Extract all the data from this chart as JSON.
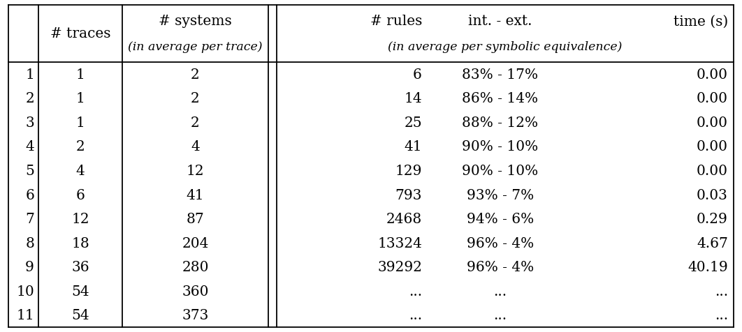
{
  "rows": [
    [
      "1",
      "1",
      "2",
      "6",
      "83% - 17%",
      "0.00"
    ],
    [
      "2",
      "1",
      "2",
      "14",
      "86% - 14%",
      "0.00"
    ],
    [
      "3",
      "1",
      "2",
      "25",
      "88% - 12%",
      "0.00"
    ],
    [
      "4",
      "2",
      "4",
      "41",
      "90% - 10%",
      "0.00"
    ],
    [
      "5",
      "4",
      "12",
      "129",
      "90% - 10%",
      "0.00"
    ],
    [
      "6",
      "6",
      "41",
      "793",
      "93% - 7%",
      "0.03"
    ],
    [
      "7",
      "12",
      "87",
      "2468",
      "94% - 6%",
      "0.29"
    ],
    [
      "8",
      "18",
      "204",
      "13324",
      "96% - 4%",
      "4.67"
    ],
    [
      "9",
      "36",
      "280",
      "39292",
      "96% - 4%",
      "40.19"
    ],
    [
      "10",
      "54",
      "360",
      "...",
      "...",
      "..."
    ],
    [
      "11",
      "54",
      "373",
      "...",
      "...",
      "..."
    ]
  ],
  "bg_color": "#ffffff",
  "text_color": "#000000",
  "font_size": 14.5,
  "font_size_italic": 12.5
}
